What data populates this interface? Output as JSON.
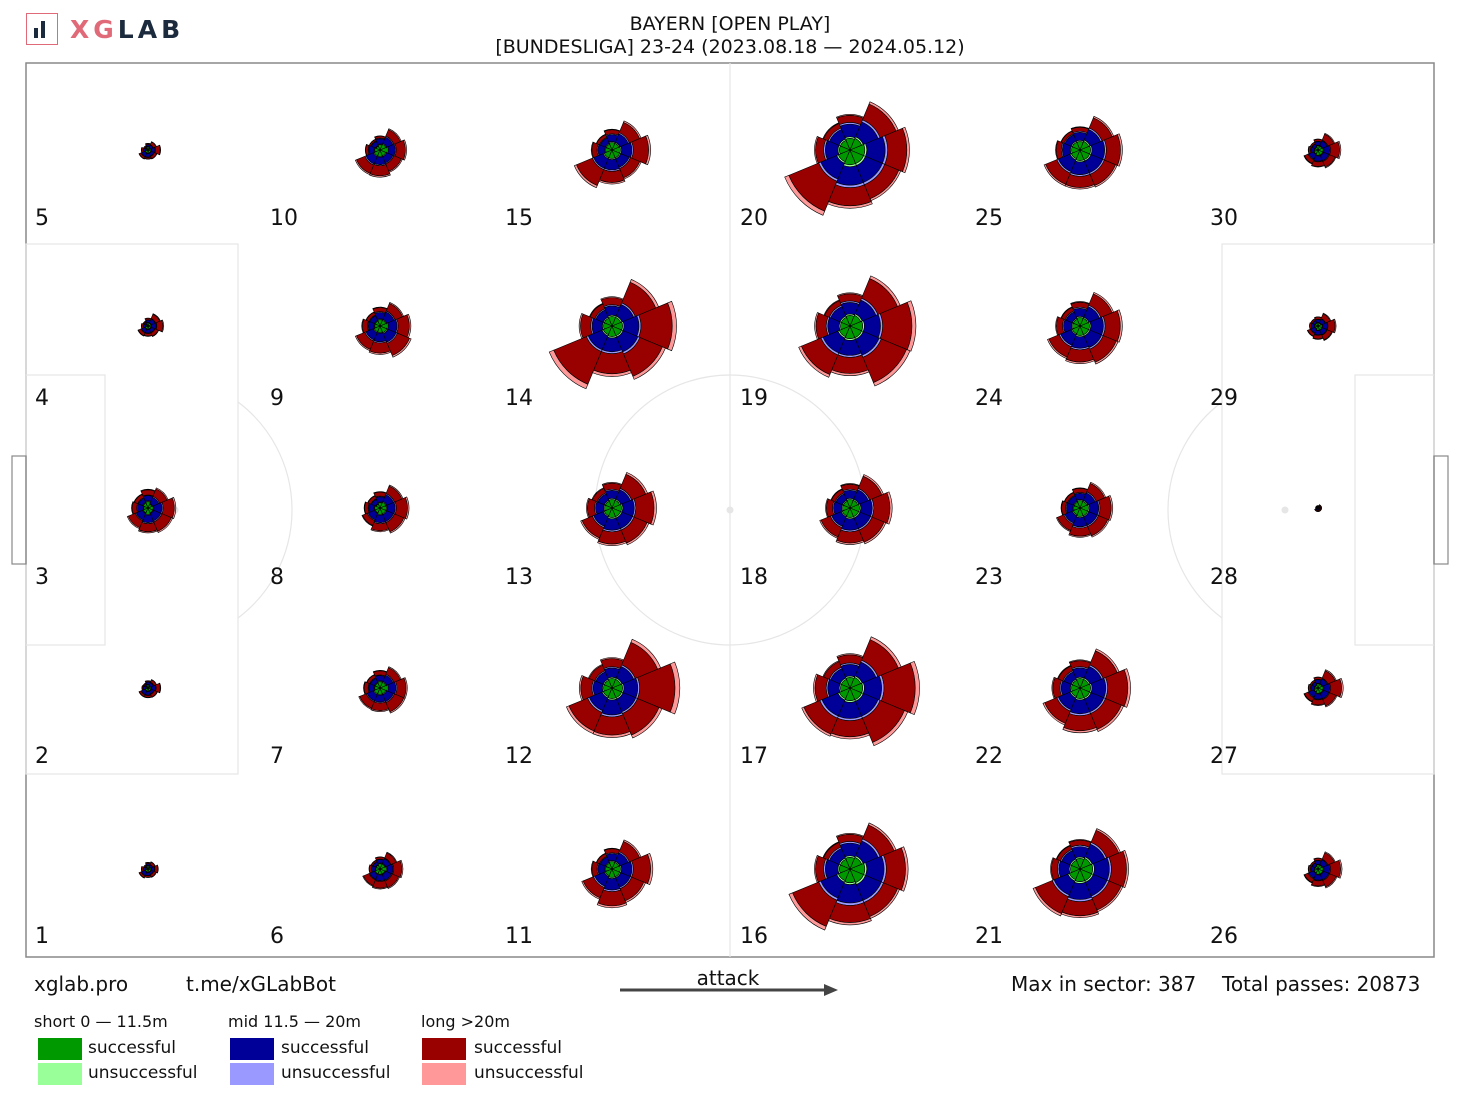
{
  "logo": {
    "text_xg": "XG",
    "text_lab": "LAB"
  },
  "title": {
    "line1": "BAYERN [OPEN PLAY]",
    "line2": "[BUNDESLIGA] 23-24 (2023.08.18 — 2024.05.12)"
  },
  "footer": {
    "site": "xglab.pro",
    "bot": "t.me/xGLabBot",
    "attack_label": "attack",
    "max_sector": "Max in sector: 387",
    "total_passes": "Total passes: 20873"
  },
  "legend": {
    "groups": [
      {
        "header": "short 0 — 11.5m",
        "successful": "successful",
        "unsuccessful": "unsuccessful",
        "color_success": "#009900",
        "color_fail": "#99ff99"
      },
      {
        "header": "mid 11.5 — 20m",
        "successful": "successful",
        "unsuccessful": "unsuccessful",
        "color_success": "#000099",
        "color_fail": "#9999ff"
      },
      {
        "header": "long >20m",
        "successful": "successful",
        "unsuccessful": "unsuccessful",
        "color_success": "#990000",
        "color_fail": "#ff9999"
      }
    ]
  },
  "chart_data": {
    "type": "polar-rose-grid",
    "grid": {
      "columns": 6,
      "rows": 5,
      "numbering": "zones numbered bottom-to-top within each column, columns left-to-right"
    },
    "zones": [
      {
        "id": 1,
        "label": "1",
        "s": [
          3,
          2,
          3,
          2,
          2,
          3,
          3,
          3
        ],
        "m": [
          5,
          4,
          3,
          2,
          4,
          6,
          5,
          4
        ],
        "l": [
          6,
          5,
          2,
          2,
          3,
          4,
          3,
          5
        ]
      },
      {
        "id": 2,
        "label": "2",
        "s": [
          3,
          2,
          3,
          2,
          2,
          3,
          3,
          3
        ],
        "m": [
          7,
          6,
          4,
          3,
          4,
          6,
          6,
          5
        ],
        "l": [
          8,
          5,
          2,
          2,
          2,
          4,
          4,
          6
        ]
      },
      {
        "id": 3,
        "label": "3",
        "s": [
          5,
          4,
          6,
          5,
          4,
          5,
          6,
          5
        ],
        "m": [
          14,
          12,
          9,
          8,
          10,
          12,
          13,
          14
        ],
        "l": [
          22,
          16,
          10,
          7,
          9,
          15,
          16,
          20
        ]
      },
      {
        "id": 4,
        "label": "4",
        "s": [
          3,
          3,
          3,
          2,
          2,
          3,
          3,
          3
        ],
        "m": [
          8,
          7,
          4,
          3,
          4,
          6,
          6,
          6
        ],
        "l": [
          12,
          9,
          3,
          2,
          3,
          6,
          5,
          7
        ]
      },
      {
        "id": 5,
        "label": "5",
        "s": [
          3,
          2,
          3,
          2,
          2,
          3,
          3,
          3
        ],
        "m": [
          6,
          5,
          3,
          2,
          4,
          6,
          6,
          5
        ],
        "l": [
          9,
          6,
          2,
          2,
          3,
          4,
          3,
          5
        ]
      },
      {
        "id": 6,
        "label": "6",
        "s": [
          6,
          5,
          5,
          4,
          4,
          5,
          5,
          5
        ],
        "m": [
          10,
          9,
          6,
          5,
          6,
          9,
          10,
          11
        ],
        "l": [
          16,
          11,
          4,
          3,
          4,
          12,
          13,
          14
        ]
      },
      {
        "id": 7,
        "label": "7",
        "s": [
          7,
          6,
          6,
          5,
          5,
          6,
          6,
          6
        ],
        "m": [
          13,
          12,
          9,
          8,
          9,
          12,
          12,
          13
        ],
        "l": [
          18,
          14,
          8,
          6,
          8,
          14,
          15,
          20
        ]
      },
      {
        "id": 8,
        "label": "8",
        "s": [
          6,
          6,
          5,
          4,
          5,
          5,
          6,
          6
        ],
        "m": [
          14,
          13,
          9,
          8,
          9,
          12,
          13,
          13
        ],
        "l": [
          22,
          16,
          8,
          6,
          7,
          10,
          14,
          20
        ]
      },
      {
        "id": 9,
        "label": "9",
        "s": [
          7,
          6,
          6,
          5,
          5,
          6,
          6,
          7
        ],
        "m": [
          15,
          14,
          11,
          9,
          10,
          14,
          15,
          16
        ],
        "l": [
          22,
          16,
          8,
          6,
          10,
          18,
          20,
          26
        ]
      },
      {
        "id": 10,
        "label": "10",
        "s": [
          7,
          6,
          5,
          4,
          5,
          6,
          6,
          6
        ],
        "m": [
          12,
          12,
          9,
          8,
          9,
          14,
          13,
          12
        ],
        "l": [
          18,
          14,
          4,
          3,
          5,
          18,
          20,
          16
        ]
      },
      {
        "id": 11,
        "label": "11",
        "s": [
          8,
          7,
          7,
          6,
          6,
          7,
          8,
          8
        ],
        "m": [
          18,
          16,
          12,
          10,
          12,
          18,
          20,
          18
        ],
        "l": [
          34,
          22,
          8,
          6,
          10,
          22,
          28,
          26
        ]
      },
      {
        "id": 12,
        "label": "12",
        "s": [
          10,
          9,
          9,
          8,
          8,
          9,
          10,
          10
        ],
        "m": [
          24,
          22,
          16,
          14,
          16,
          24,
          26,
          24
        ],
        "l": [
          70,
          48,
          16,
          12,
          22,
          40,
          36,
          46
        ]
      },
      {
        "id": 13,
        "label": "13",
        "s": [
          9,
          8,
          8,
          7,
          7,
          8,
          9,
          9
        ],
        "m": [
          20,
          18,
          14,
          12,
          14,
          18,
          20,
          20
        ],
        "l": [
          36,
          30,
          12,
          10,
          14,
          22,
          24,
          28
        ]
      },
      {
        "id": 14,
        "label": "14",
        "s": [
          10,
          9,
          9,
          8,
          8,
          9,
          10,
          10
        ],
        "m": [
          26,
          22,
          16,
          14,
          18,
          26,
          24,
          28
        ],
        "l": [
          62,
          44,
          14,
          10,
          20,
          70,
          40,
          48
        ]
      },
      {
        "id": 15,
        "label": "15",
        "s": [
          8,
          7,
          7,
          6,
          6,
          8,
          8,
          8
        ],
        "m": [
          18,
          16,
          12,
          10,
          12,
          18,
          18,
          16
        ],
        "l": [
          30,
          22,
          8,
          6,
          10,
          34,
          22,
          20
        ]
      },
      {
        "id": 16,
        "label": "16",
        "s": [
          14,
          12,
          11,
          10,
          10,
          12,
          13,
          14
        ],
        "m": [
          30,
          28,
          22,
          18,
          22,
          30,
          32,
          30
        ],
        "l": [
          38,
          30,
          14,
          10,
          16,
          56,
          34,
          30
        ]
      },
      {
        "id": 17,
        "label": "17",
        "s": [
          12,
          11,
          10,
          9,
          9,
          11,
          12,
          12
        ],
        "m": [
          30,
          26,
          20,
          18,
          20,
          30,
          28,
          28
        ],
        "l": [
          62,
          44,
          16,
          12,
          22,
          34,
          32,
          52
        ]
      },
      {
        "id": 18,
        "label": "18",
        "s": [
          9,
          8,
          8,
          7,
          7,
          8,
          9,
          9
        ],
        "m": [
          20,
          18,
          14,
          12,
          14,
          18,
          20,
          20
        ],
        "l": [
          32,
          26,
          10,
          8,
          12,
          20,
          22,
          26
        ]
      },
      {
        "id": 19,
        "label": "19",
        "s": [
          12,
          11,
          10,
          9,
          9,
          11,
          12,
          12
        ],
        "m": [
          28,
          26,
          20,
          18,
          20,
          28,
          26,
          30
        ],
        "l": [
          58,
          42,
          14,
          10,
          20,
          42,
          32,
          54
        ]
      },
      {
        "id": 20,
        "label": "20",
        "s": [
          14,
          12,
          11,
          10,
          10,
          12,
          14,
          14
        ],
        "m": [
          32,
          28,
          22,
          18,
          22,
          30,
          32,
          32
        ],
        "l": [
          38,
          34,
          14,
          10,
          16,
          64,
          36,
          30
        ]
      },
      {
        "id": 21,
        "label": "21",
        "s": [
          12,
          11,
          10,
          9,
          9,
          11,
          12,
          12
        ],
        "m": [
          26,
          24,
          18,
          16,
          18,
          26,
          28,
          26
        ],
        "l": [
          30,
          26,
          10,
          8,
          12,
          36,
          28,
          26
        ]
      },
      {
        "id": 22,
        "label": "22",
        "s": [
          10,
          9,
          9,
          8,
          8,
          9,
          10,
          10
        ],
        "m": [
          24,
          22,
          16,
          14,
          16,
          22,
          24,
          24
        ],
        "l": [
          40,
          30,
          12,
          10,
          14,
          26,
          30,
          34
        ]
      },
      {
        "id": 23,
        "label": "23",
        "s": [
          8,
          7,
          7,
          6,
          6,
          7,
          8,
          8
        ],
        "m": [
          16,
          14,
          11,
          10,
          11,
          14,
          16,
          16
        ],
        "l": [
          22,
          18,
          8,
          6,
          8,
          14,
          16,
          20
        ]
      },
      {
        "id": 24,
        "label": "24",
        "s": [
          9,
          8,
          8,
          7,
          7,
          8,
          9,
          9
        ],
        "m": [
          22,
          20,
          14,
          12,
          14,
          20,
          20,
          22
        ],
        "l": [
          30,
          24,
          10,
          8,
          12,
          22,
          24,
          28
        ]
      },
      {
        "id": 25,
        "label": "25",
        "s": [
          10,
          9,
          8,
          8,
          8,
          9,
          10,
          10
        ],
        "m": [
          22,
          20,
          14,
          12,
          14,
          22,
          22,
          22
        ],
        "l": [
          28,
          22,
          8,
          6,
          10,
          24,
          22,
          24
        ]
      },
      {
        "id": 26,
        "label": "26",
        "s": [
          5,
          4,
          4,
          3,
          3,
          4,
          5,
          5
        ],
        "m": [
          10,
          9,
          6,
          5,
          6,
          9,
          9,
          10
        ],
        "l": [
          20,
          14,
          4,
          3,
          4,
          8,
          10,
          14
        ]
      },
      {
        "id": 27,
        "label": "27",
        "s": [
          5,
          4,
          4,
          3,
          3,
          4,
          5,
          5
        ],
        "m": [
          10,
          9,
          6,
          5,
          6,
          9,
          9,
          10
        ],
        "l": [
          22,
          16,
          4,
          3,
          4,
          8,
          10,
          14
        ]
      },
      {
        "id": 28,
        "label": "28",
        "s": [
          1,
          1,
          1,
          1,
          1,
          1,
          1,
          1
        ],
        "m": [
          2,
          2,
          1,
          1,
          1,
          2,
          2,
          2
        ],
        "l": [
          2,
          2,
          1,
          1,
          1,
          2,
          2,
          2
        ]
      },
      {
        "id": 29,
        "label": "29",
        "s": [
          4,
          3,
          3,
          3,
          3,
          3,
          4,
          4
        ],
        "m": [
          8,
          7,
          5,
          4,
          5,
          7,
          7,
          8
        ],
        "l": [
          14,
          10,
          4,
          3,
          3,
          6,
          7,
          10
        ]
      },
      {
        "id": 30,
        "label": "30",
        "s": [
          5,
          4,
          4,
          3,
          3,
          4,
          5,
          5
        ],
        "m": [
          10,
          9,
          6,
          5,
          6,
          9,
          9,
          10
        ],
        "l": [
          18,
          13,
          4,
          3,
          4,
          8,
          9,
          12
        ]
      }
    ],
    "direction_order": [
      "E",
      "NE",
      "N",
      "NW",
      "W",
      "SW",
      "S",
      "SE"
    ],
    "max_in_sector": 387,
    "total_passes": 20873
  }
}
